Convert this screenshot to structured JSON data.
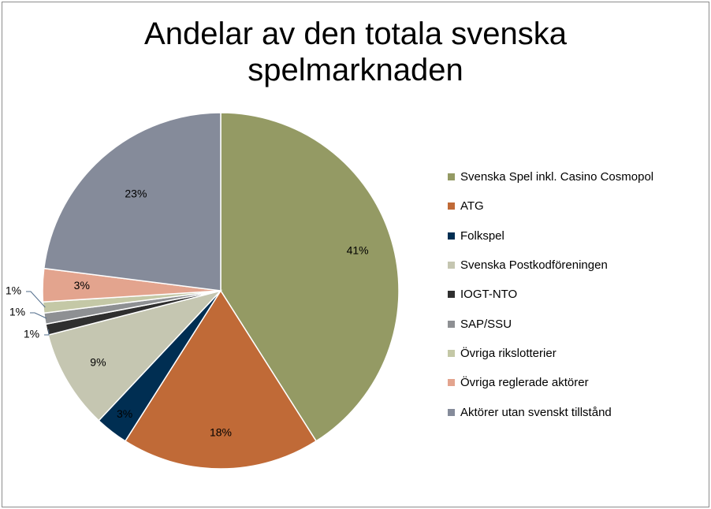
{
  "chart_data": {
    "type": "pie",
    "title": "Andelar av den totala svenska spelmarknaden",
    "title_lines": [
      "Andelar av den totala svenska",
      "spelmarknaden"
    ],
    "legend_position": "right",
    "slices": [
      {
        "name": "Svenska Spel inkl. Casino Cosmopol",
        "value": 41,
        "label": "41%",
        "color": "#949a64"
      },
      {
        "name": "ATG",
        "value": 18,
        "label": "18%",
        "color": "#c06a37"
      },
      {
        "name": "Folkspel",
        "value": 3,
        "label": "3%",
        "color": "#002e52"
      },
      {
        "name": "Svenska Postkodföreningen",
        "value": 9,
        "label": "9%",
        "color": "#c5c6b1"
      },
      {
        "name": "IOGT-NTO",
        "value": 1,
        "label": "1%",
        "color": "#2f2f2f"
      },
      {
        "name": "SAP/SSU",
        "value": 1,
        "label": "1%",
        "color": "#8e9093"
      },
      {
        "name": "Övriga rikslotterier",
        "value": 1,
        "label": "1%",
        "color": "#c4c8a6"
      },
      {
        "name": "Övriga reglerade aktörer",
        "value": 3,
        "label": "3%",
        "color": "#e3a48e"
      },
      {
        "name": "Aktörer utan svenskt tillstånd",
        "value": 23,
        "label": "23%",
        "color": "#858b9a"
      }
    ]
  }
}
